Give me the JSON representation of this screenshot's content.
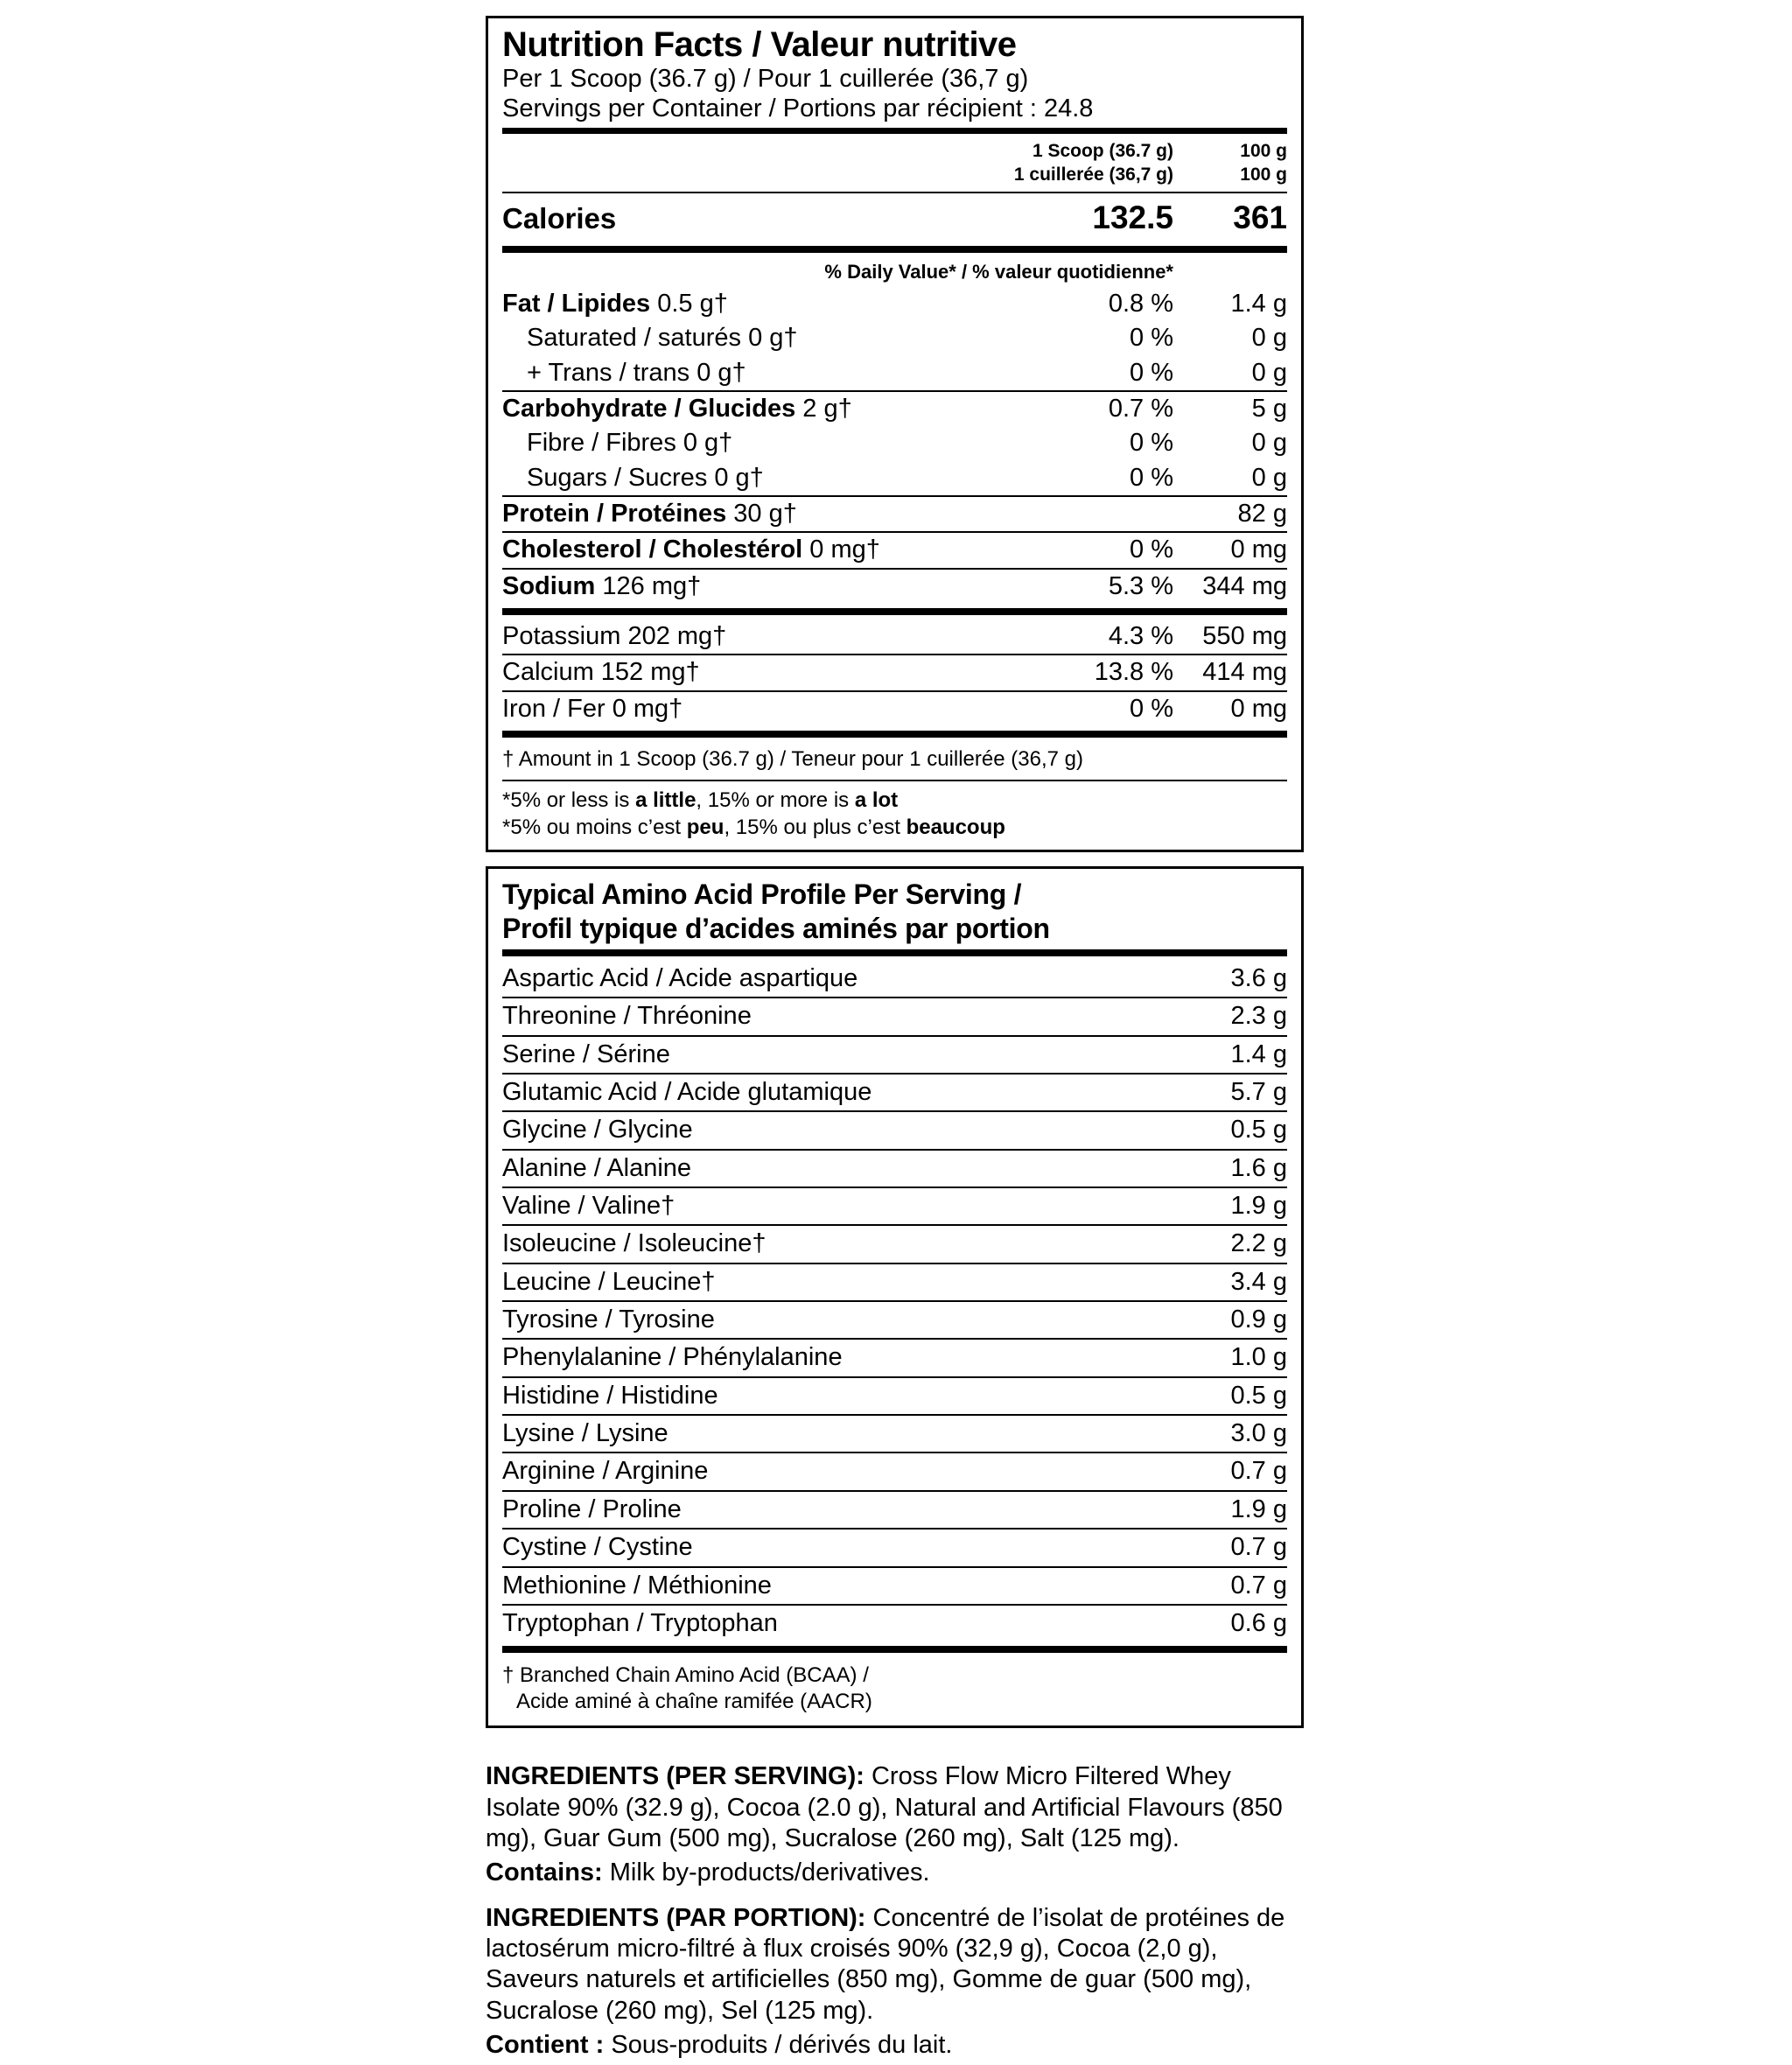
{
  "colors": {
    "text": "#000000",
    "background": "#ffffff",
    "rule": "#000000"
  },
  "nutrition_facts": {
    "title": "Nutrition Facts / Valeur nutritive",
    "serving_line1": "Per 1 Scoop (36.7 g) / Pour 1 cuillerée (36,7 g)",
    "serving_line2": "Servings per Container / Portions par récipient : 24.8",
    "col_header_serving_en": "1 Scoop (36.7 g)",
    "col_header_serving_fr": "1 cuillerée (36,7 g)",
    "col_header_100g_1": "100 g",
    "col_header_100g_2": "100 g",
    "calories_label": "Calories",
    "calories_per_serving": "132.5",
    "calories_per_100g": "361",
    "daily_value_header": "% Daily Value* / % valeur quotidienne*",
    "rows": [
      {
        "label_bold": "Fat / Lipides",
        "label_rest": " 0.5 g†",
        "dv": "0.8 %",
        "per100": "1.4 g"
      },
      {
        "label_bold": "",
        "label_rest": "Saturated / saturés 0 g†",
        "dv": "0 %",
        "per100": "0 g"
      },
      {
        "label_bold": "",
        "label_rest": "+ Trans / trans 0 g†",
        "dv": "0 %",
        "per100": "0 g"
      },
      {
        "label_bold": "Carbohydrate / Glucides",
        "label_rest": " 2 g†",
        "dv": "0.7 %",
        "per100": "5 g"
      },
      {
        "label_bold": "",
        "label_rest": "Fibre / Fibres 0 g†",
        "dv": "0 %",
        "per100": "0 g"
      },
      {
        "label_bold": "",
        "label_rest": "Sugars / Sucres 0 g†",
        "dv": "0 %",
        "per100": "0 g"
      },
      {
        "label_bold": "Protein / Protéines",
        "label_rest": " 30 g†",
        "dv": "",
        "per100": "82 g"
      },
      {
        "label_bold": "Cholesterol / Cholestérol",
        "label_rest": " 0 mg†",
        "dv": "0 %",
        "per100": "0 mg"
      },
      {
        "label_bold": "Sodium",
        "label_rest": " 126 mg†",
        "dv": "5.3 %",
        "per100": "344 mg"
      },
      {
        "label_bold": "",
        "label_rest": "Potassium 202 mg†",
        "dv": "4.3 %",
        "per100": "550 mg"
      },
      {
        "label_bold": "",
        "label_rest": "Calcium 152 mg†",
        "dv": "13.8 %",
        "per100": "414 mg"
      },
      {
        "label_bold": "",
        "label_rest": "Iron / Fer 0 mg†",
        "dv": "0 %",
        "per100": "0 mg"
      }
    ],
    "footnote_dagger": "† Amount in 1 Scoop (36.7 g) / Teneur pour 1 cuillerée (36,7 g)",
    "footnote_en": {
      "pre": "*5% or less is ",
      "bold1": "a little",
      "mid": ", 15% or more is ",
      "bold2": "a lot"
    },
    "footnote_fr": {
      "pre": "*5% ou moins c’est ",
      "bold1": "peu",
      "mid": ", 15% ou plus c’est ",
      "bold2": "beaucoup"
    }
  },
  "amino_profile": {
    "title_line1": "Typical Amino Acid Profile Per Serving /",
    "title_line2": "Profil typique d’acides aminés par portion",
    "rows": [
      {
        "label": "Aspartic Acid / Acide aspartique",
        "value": "3.6 g"
      },
      {
        "label": "Threonine / Thréonine",
        "value": "2.3 g"
      },
      {
        "label": "Serine / Sérine",
        "value": "1.4 g"
      },
      {
        "label": "Glutamic Acid / Acide glutamique",
        "value": "5.7 g"
      },
      {
        "label": "Glycine / Glycine",
        "value": "0.5 g"
      },
      {
        "label": "Alanine / Alanine",
        "value": "1.6 g"
      },
      {
        "label": "Valine / Valine†",
        "value": "1.9 g"
      },
      {
        "label": "Isoleucine / Isoleucine†",
        "value": "2.2 g"
      },
      {
        "label": "Leucine / Leucine†",
        "value": "3.4 g"
      },
      {
        "label": "Tyrosine / Tyrosine",
        "value": "0.9 g"
      },
      {
        "label": "Phenylalanine / Phénylalanine",
        "value": "1.0 g"
      },
      {
        "label": "Histidine / Histidine",
        "value": "0.5 g"
      },
      {
        "label": "Lysine / Lysine",
        "value": "3.0 g"
      },
      {
        "label": "Arginine / Arginine",
        "value": "0.7 g"
      },
      {
        "label": "Proline / Proline",
        "value": "1.9 g"
      },
      {
        "label": "Cystine / Cystine",
        "value": "0.7 g"
      },
      {
        "label": "Methionine / Méthionine",
        "value": "0.7 g"
      },
      {
        "label": "Tryptophan / Tryptophan",
        "value": "0.6 g"
      }
    ],
    "footnote_line1": "† Branched Chain Amino Acid (BCAA) /",
    "footnote_line2": "Acide aminé à chaîne ramifée (AACR)"
  },
  "ingredients": {
    "en_heading": "INGREDIENTS (PER SERVING):",
    "en_text": " Cross Flow Micro Filtered Whey Isolate 90% (32.9 g), Cocoa (2.0 g), Natural and Artificial Flavours (850 mg), Guar Gum (500 mg), Sucralose (260 mg), Salt (125 mg).",
    "contains_heading": "Contains:",
    "contains_text": " Milk by-products/derivatives.",
    "fr_heading": "INGREDIENTS (PAR PORTION):",
    "fr_text": " Concentré de l’isolat de protéines de lactosérum micro-filtré à flux croisés 90% (32,9 g), Cocoa (2,0 g), Saveurs naturels et artificielles (850 mg), Gomme de guar (500 mg), Sucralose (260 mg), Sel (125 mg).",
    "contient_heading": "Contient :",
    "contient_text": " Sous-produits / dérivés du lait."
  }
}
